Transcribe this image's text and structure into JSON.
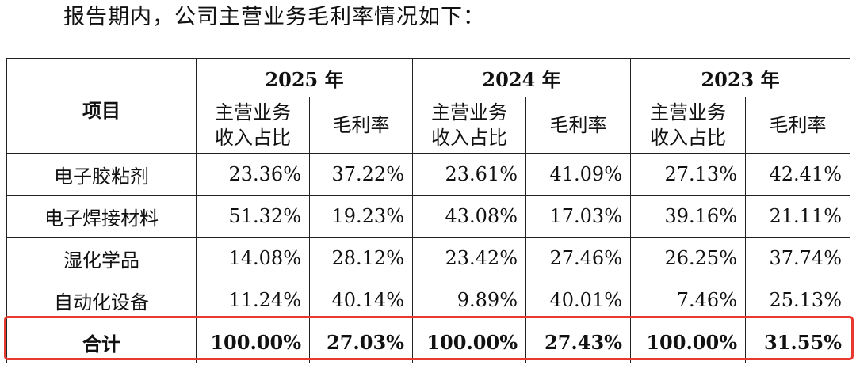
{
  "intro_text": "报告期内，公司主营业务毛利率情况如下：",
  "table": {
    "item_header": "项目",
    "years": [
      "2025 年",
      "2024 年",
      "2023 年"
    ],
    "sub_headers": {
      "share_line1": "主营业务",
      "share_line2": "收入占比",
      "margin": "毛利率"
    },
    "rows": [
      {
        "label": "电子胶粘剂",
        "values": [
          "23.36%",
          "37.22%",
          "23.61%",
          "41.09%",
          "27.13%",
          "42.41%"
        ]
      },
      {
        "label": "电子焊接材料",
        "values": [
          "51.32%",
          "19.23%",
          "43.08%",
          "17.03%",
          "39.16%",
          "21.11%"
        ]
      },
      {
        "label": "湿化学品",
        "values": [
          "14.08%",
          "28.12%",
          "23.42%",
          "27.46%",
          "26.25%",
          "37.74%"
        ]
      },
      {
        "label": "自动化设备",
        "values": [
          "11.24%",
          "40.14%",
          "9.89%",
          "40.01%",
          "7.46%",
          "25.13%"
        ]
      }
    ],
    "total": {
      "label": "合计",
      "values": [
        "100.00%",
        "27.03%",
        "100.00%",
        "27.43%",
        "100.00%",
        "31.55%"
      ]
    }
  },
  "highlight_color": "#e8392f"
}
